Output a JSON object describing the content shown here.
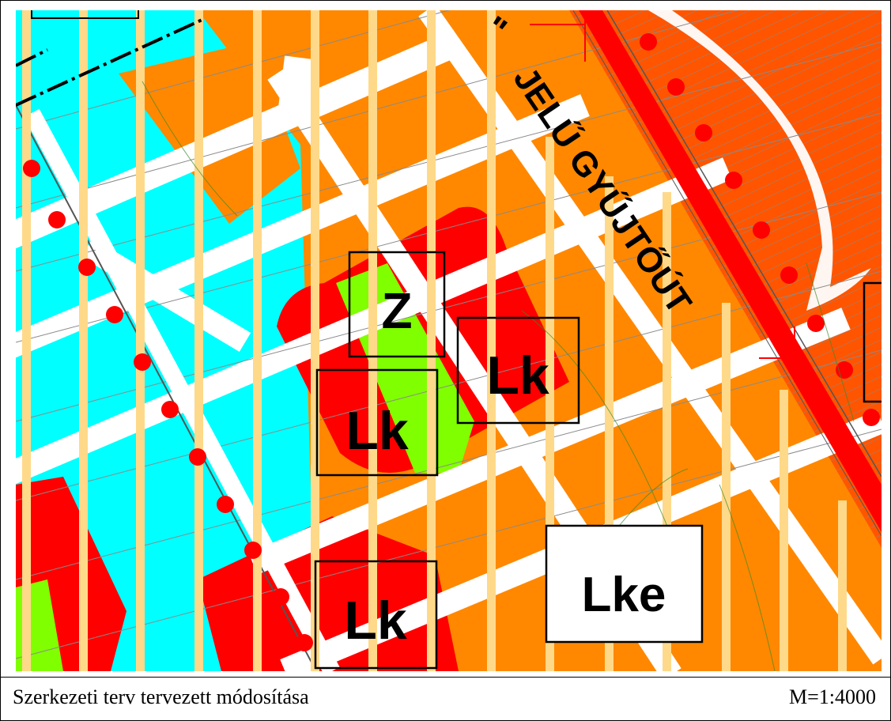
{
  "caption": {
    "title": "Szerkezeti terv tervezett módosítása",
    "scale": "M=1:4000"
  },
  "road_label": "JELŰ GYŰJTŐÚT",
  "road_label_prefix": "\"",
  "zones": [
    {
      "id": "z",
      "label": "Z"
    },
    {
      "id": "lk1",
      "label": "Lk"
    },
    {
      "id": "lk2",
      "label": "Lk"
    },
    {
      "id": "lk3",
      "label": "Lk"
    },
    {
      "id": "lke",
      "label": "Lke"
    }
  ],
  "colors": {
    "residential_orange": "#FF8800",
    "residential_red": "#FF0000",
    "green_area": "#80FF00",
    "water_cyan": "#00FFFF",
    "stripe_yellow": "#FFD98A",
    "road_white": "#FFFFFF",
    "main_road_red": "#FF0000",
    "hatched_orange": "#FF5500"
  }
}
